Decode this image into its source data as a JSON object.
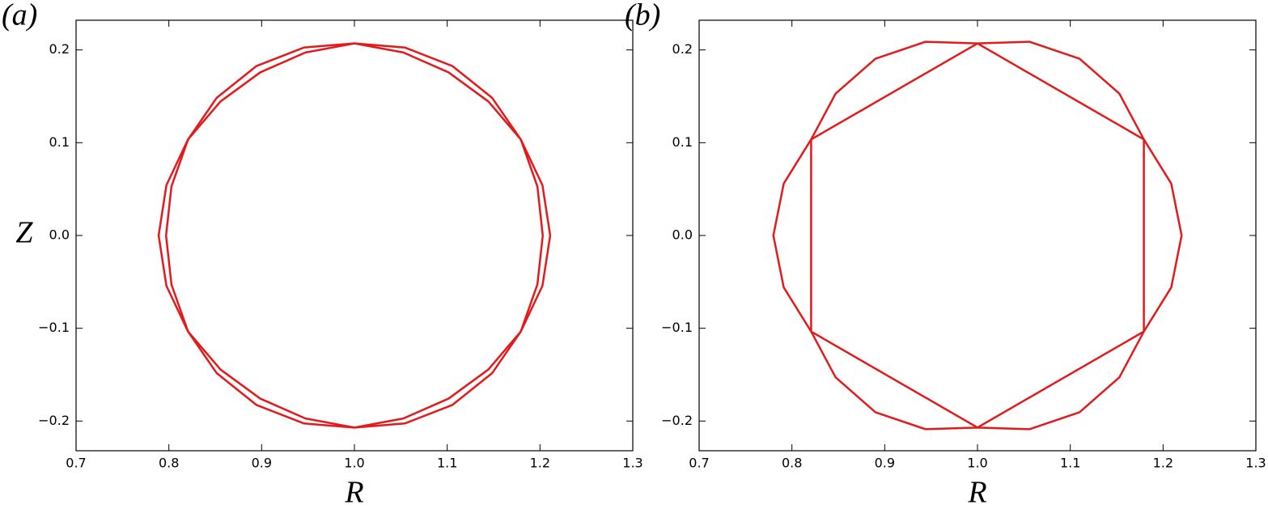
{
  "chart_data": [
    {
      "type": "line",
      "panel_label": "(a)",
      "xlabel": "R",
      "ylabel": "Z",
      "xlim": [
        0.7,
        1.3
      ],
      "ylim": [
        -0.232,
        0.232
      ],
      "xticks": [
        0.7,
        0.8,
        0.9,
        {
          "value": 1,
          "label": "1.0"
        },
        1.1,
        1.2,
        1.3
      ],
      "yticks": [
        {
          "value": -0.2,
          "label": "−0.2"
        },
        {
          "value": -0.1,
          "label": "−0.1"
        },
        {
          "value": 0,
          "label": "0.0"
        },
        0.1,
        0.2
      ],
      "series": [
        {
          "color": "#e31a1c",
          "x": [
            1.211,
            1.2026,
            1.1793,
            1.1484,
            1.1055,
            1.0543,
            1.0,
            0.9457,
            0.8945,
            0.8516,
            0.8207,
            0.7974,
            0.789,
            0.7974,
            0.8207,
            0.8516,
            0.8945,
            0.9457,
            1.0,
            1.0543,
            1.1055,
            1.1484,
            1.1793,
            1.2026,
            1.211
          ],
          "values": [
            0,
            0.0543,
            0.1035,
            0.1484,
            0.1827,
            0.2026,
            0.207,
            0.2026,
            0.1827,
            0.1484,
            0.1035,
            0.0543,
            0,
            -0.0543,
            -0.1035,
            -0.1484,
            -0.1827,
            -0.2026,
            -0.207,
            -0.2026,
            -0.1827,
            -0.1484,
            -0.1035,
            -0.0543,
            0
          ]
        },
        {
          "color": "#e31a1c",
          "x": [
            1.203,
            1.1972,
            1.1793,
            1.1444,
            1.1015,
            1.0528,
            1.0,
            0.9472,
            0.8985,
            0.8556,
            0.8207,
            0.8028,
            0.797,
            0.8028,
            0.8207,
            0.8556,
            0.8985,
            0.9472,
            1.0,
            1.0528,
            1.1015,
            1.1444,
            1.1793,
            1.1972,
            1.203
          ],
          "values": [
            0,
            0.0528,
            0.1035,
            0.1444,
            0.1758,
            0.1972,
            0.207,
            0.1972,
            0.1758,
            0.1444,
            0.1035,
            0.0528,
            0,
            -0.0528,
            -0.1035,
            -0.1444,
            -0.1758,
            -0.1972,
            -0.207,
            -0.1972,
            -0.1758,
            -0.1444,
            -0.1035,
            -0.0528,
            0
          ]
        }
      ]
    },
    {
      "type": "line",
      "panel_label": "(b)",
      "xlabel": "R",
      "xlim": [
        0.7,
        1.3
      ],
      "ylim": [
        -0.232,
        0.232
      ],
      "xticks": [
        0.7,
        0.8,
        0.9,
        {
          "value": 1,
          "label": "1.0"
        },
        1.1,
        1.2,
        1.3
      ],
      "yticks": [
        {
          "value": -0.2,
          "label": "−0.2"
        },
        {
          "value": -0.1,
          "label": "−0.1"
        },
        {
          "value": 0,
          "label": "0.0"
        },
        0.1,
        0.2
      ],
      "series": [
        {
          "color": "#e31a1c",
          "x": [
            1.22,
            1.2088,
            1.1793,
            1.1529,
            1.11,
            1.056,
            1.0,
            0.944,
            0.89,
            0.8471,
            0.8207,
            0.7912,
            0.78,
            0.7912,
            0.8207,
            0.8471,
            0.89,
            0.944,
            1.0,
            1.056,
            1.11,
            1.1529,
            1.1793,
            1.2088,
            1.22
          ],
          "values": [
            0,
            0.056,
            0.1035,
            0.1529,
            0.1905,
            0.2088,
            0.207,
            0.2088,
            0.1905,
            0.1529,
            0.1035,
            0.056,
            0,
            -0.056,
            -0.1035,
            -0.1529,
            -0.1905,
            -0.2088,
            -0.207,
            -0.2088,
            -0.1905,
            -0.1529,
            -0.1035,
            -0.056,
            0
          ]
        },
        {
          "color": "#e31a1c",
          "x": [
            1.1793,
            1.0,
            0.8207,
            0.8207,
            1.0,
            1.1793,
            1.1793
          ],
          "values": [
            0.1035,
            0.207,
            0.1035,
            -0.1035,
            -0.207,
            -0.1035,
            0.1035
          ]
        }
      ]
    }
  ]
}
